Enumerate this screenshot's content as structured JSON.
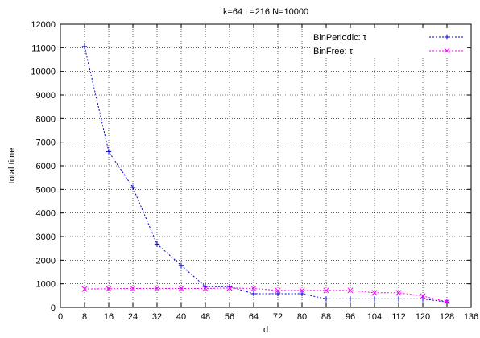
{
  "chart_data": {
    "type": "line",
    "title": "k=64 L=216 N=10000",
    "xlabel": "d",
    "ylabel": "total time",
    "xlim": [
      0,
      136
    ],
    "ylim": [
      0,
      12000
    ],
    "xticks": [
      0,
      8,
      16,
      24,
      32,
      40,
      48,
      56,
      64,
      72,
      80,
      88,
      96,
      104,
      112,
      120,
      128,
      136
    ],
    "yticks": [
      0,
      1000,
      2000,
      3000,
      4000,
      5000,
      6000,
      7000,
      8000,
      9000,
      10000,
      11000,
      12000
    ],
    "grid": true,
    "legend_position": "top-right",
    "series": [
      {
        "name": "BinPeriodic: τ",
        "color": "#0000cc",
        "marker": "plus",
        "x": [
          8,
          16,
          24,
          32,
          40,
          48,
          56,
          64,
          72,
          80,
          88,
          96,
          104,
          112,
          120,
          128
        ],
        "values": [
          11050,
          6600,
          5080,
          2680,
          1780,
          880,
          880,
          580,
          580,
          580,
          360,
          360,
          360,
          360,
          360,
          230
        ]
      },
      {
        "name": "BinFree: τ",
        "color": "#ff00ff",
        "marker": "x",
        "x": [
          8,
          16,
          24,
          32,
          40,
          48,
          56,
          64,
          72,
          80,
          88,
          96,
          104,
          112,
          120,
          128
        ],
        "values": [
          780,
          790,
          800,
          800,
          800,
          800,
          820,
          800,
          720,
          720,
          720,
          720,
          620,
          620,
          480,
          240
        ]
      }
    ]
  }
}
